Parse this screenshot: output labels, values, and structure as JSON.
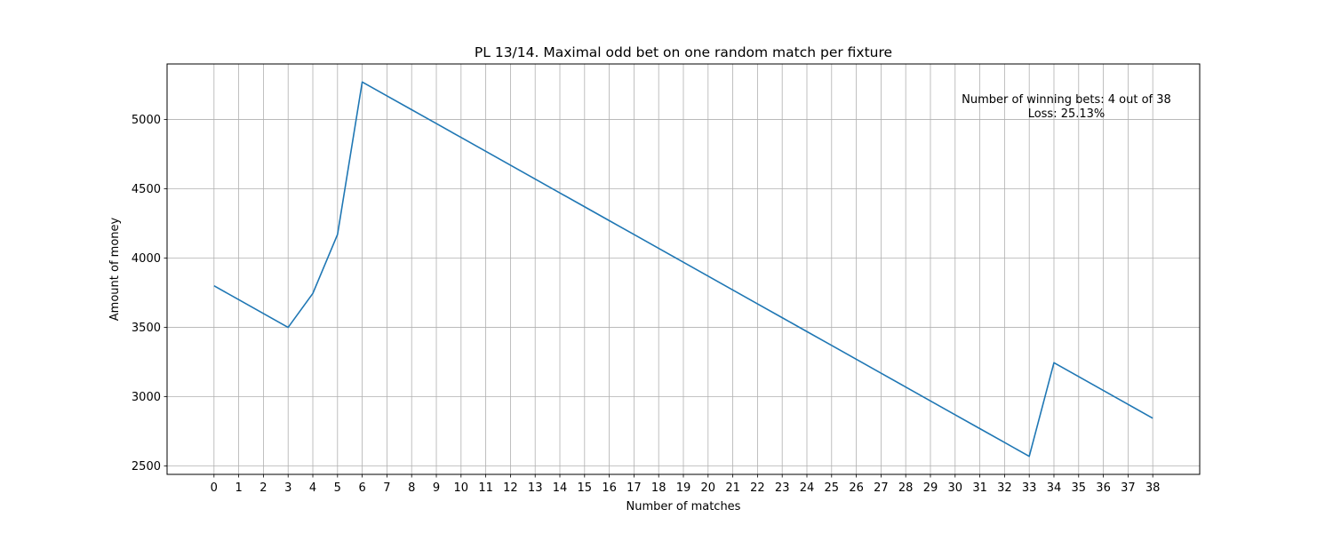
{
  "chart_data": {
    "type": "line",
    "title": "PL 13/14. Maximal odd bet on one random match per fixture",
    "xlabel": "Number of matches",
    "ylabel": "Amount of money",
    "xlim": [
      -1.9,
      39.9
    ],
    "ylim": [
      2440,
      5400
    ],
    "x_ticks": [
      0,
      1,
      2,
      3,
      4,
      5,
      6,
      7,
      8,
      9,
      10,
      11,
      12,
      13,
      14,
      15,
      16,
      17,
      18,
      19,
      20,
      21,
      22,
      23,
      24,
      25,
      26,
      27,
      28,
      29,
      30,
      31,
      32,
      33,
      34,
      35,
      36,
      37,
      38
    ],
    "y_ticks": [
      2500,
      3000,
      3500,
      4000,
      4500,
      5000
    ],
    "grid": true,
    "series": [
      {
        "color": "#1f77b4",
        "x": [
          0,
          1,
          2,
          3,
          4,
          5,
          6,
          7,
          8,
          9,
          10,
          11,
          12,
          13,
          14,
          15,
          16,
          17,
          18,
          19,
          20,
          21,
          22,
          23,
          24,
          25,
          26,
          27,
          28,
          29,
          30,
          31,
          32,
          33,
          34,
          35,
          36,
          37,
          38
        ],
        "y": [
          3800,
          3700,
          3600,
          3500,
          3745,
          4170,
          5270,
          5170,
          5070,
          4970,
          4870,
          4770,
          4670,
          4570,
          4470,
          4370,
          4270,
          4170,
          4070,
          3970,
          3870,
          3770,
          3670,
          3570,
          3470,
          3370,
          3270,
          3170,
          3070,
          2970,
          2870,
          2770,
          2670,
          2570,
          3245,
          3145,
          3045,
          2945,
          2845
        ]
      }
    ],
    "annotations": [
      "Number of winning bets: 4 out of 38",
      "Loss: 25.13%"
    ]
  }
}
